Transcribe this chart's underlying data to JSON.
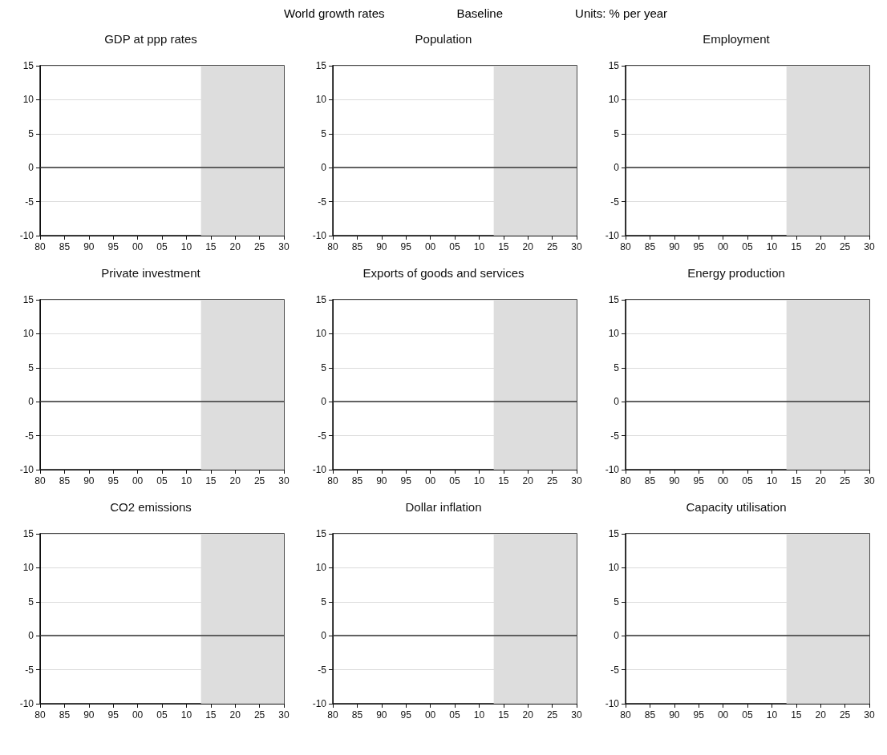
{
  "chart_data": [
    {
      "type": "line",
      "title": "GDP at ppp rates",
      "annotations": [
        "World growth rates",
        "Baseline",
        "Units: % per year"
      ],
      "xlim": [
        1980,
        2030
      ],
      "xticks": [
        {
          "value": 1980,
          "label": "80"
        },
        {
          "value": 1985,
          "label": "85"
        },
        {
          "value": 1990,
          "label": "90"
        },
        {
          "value": 1995,
          "label": "95"
        },
        {
          "value": 2000,
          "label": "00"
        },
        {
          "value": 2005,
          "label": "05"
        },
        {
          "value": 2010,
          "label": "10"
        },
        {
          "value": 2015,
          "label": "15"
        },
        {
          "value": 2020,
          "label": "20"
        },
        {
          "value": 2025,
          "label": "25"
        },
        {
          "value": 2030,
          "label": "30"
        }
      ],
      "ylim": [
        -10,
        15
      ],
      "yticks": [
        -10,
        -5,
        0,
        5,
        10,
        15
      ],
      "grid": "y",
      "bands": [
        {
          "axis": "x",
          "from": 2013,
          "to": 2030,
          "color": "#dddddd"
        }
      ],
      "ref_lines": [
        {
          "axis": "y",
          "value": 0,
          "color": "#333333"
        }
      ]
    },
    {
      "type": "line",
      "title": "Population",
      "xlim": [
        1980,
        2030
      ],
      "xticks": [
        {
          "value": 1980,
          "label": "80"
        },
        {
          "value": 1985,
          "label": "85"
        },
        {
          "value": 1990,
          "label": "90"
        },
        {
          "value": 1995,
          "label": "95"
        },
        {
          "value": 2000,
          "label": "00"
        },
        {
          "value": 2005,
          "label": "05"
        },
        {
          "value": 2010,
          "label": "10"
        },
        {
          "value": 2015,
          "label": "15"
        },
        {
          "value": 2020,
          "label": "20"
        },
        {
          "value": 2025,
          "label": "25"
        },
        {
          "value": 2030,
          "label": "30"
        }
      ],
      "ylim": [
        -10,
        15
      ],
      "yticks": [
        -10,
        -5,
        0,
        5,
        10,
        15
      ],
      "grid": "y",
      "bands": [
        {
          "axis": "x",
          "from": 2013,
          "to": 2030,
          "color": "#dddddd"
        }
      ],
      "ref_lines": [
        {
          "axis": "y",
          "value": 0,
          "color": "#333333"
        }
      ]
    },
    {
      "type": "line",
      "title": "Employment",
      "xlim": [
        1980,
        2030
      ],
      "xticks": [
        {
          "value": 1980,
          "label": "80"
        },
        {
          "value": 1985,
          "label": "85"
        },
        {
          "value": 1990,
          "label": "90"
        },
        {
          "value": 1995,
          "label": "95"
        },
        {
          "value": 2000,
          "label": "00"
        },
        {
          "value": 2005,
          "label": "05"
        },
        {
          "value": 2010,
          "label": "10"
        },
        {
          "value": 2015,
          "label": "15"
        },
        {
          "value": 2020,
          "label": "20"
        },
        {
          "value": 2025,
          "label": "25"
        },
        {
          "value": 2030,
          "label": "30"
        }
      ],
      "ylim": [
        -10,
        15
      ],
      "yticks": [
        -10,
        -5,
        0,
        5,
        10,
        15
      ],
      "grid": "y",
      "bands": [
        {
          "axis": "x",
          "from": 2013,
          "to": 2030,
          "color": "#dddddd"
        }
      ],
      "ref_lines": [
        {
          "axis": "y",
          "value": 0,
          "color": "#333333"
        }
      ]
    },
    {
      "type": "line",
      "title": "Private investment",
      "xlim": [
        1980,
        2030
      ],
      "xticks": [
        {
          "value": 1980,
          "label": "80"
        },
        {
          "value": 1985,
          "label": "85"
        },
        {
          "value": 1990,
          "label": "90"
        },
        {
          "value": 1995,
          "label": "95"
        },
        {
          "value": 2000,
          "label": "00"
        },
        {
          "value": 2005,
          "label": "05"
        },
        {
          "value": 2010,
          "label": "10"
        },
        {
          "value": 2015,
          "label": "15"
        },
        {
          "value": 2020,
          "label": "20"
        },
        {
          "value": 2025,
          "label": "25"
        },
        {
          "value": 2030,
          "label": "30"
        }
      ],
      "ylim": [
        -10,
        15
      ],
      "yticks": [
        -10,
        -5,
        0,
        5,
        10,
        15
      ],
      "grid": "y",
      "bands": [
        {
          "axis": "x",
          "from": 2013,
          "to": 2030,
          "color": "#dddddd"
        }
      ],
      "ref_lines": [
        {
          "axis": "y",
          "value": 0,
          "color": "#333333"
        }
      ]
    },
    {
      "type": "line",
      "title": "Exports of goods and services",
      "xlim": [
        1980,
        2030
      ],
      "xticks": [
        {
          "value": 1980,
          "label": "80"
        },
        {
          "value": 1985,
          "label": "85"
        },
        {
          "value": 1990,
          "label": "90"
        },
        {
          "value": 1995,
          "label": "95"
        },
        {
          "value": 2000,
          "label": "00"
        },
        {
          "value": 2005,
          "label": "05"
        },
        {
          "value": 2010,
          "label": "10"
        },
        {
          "value": 2015,
          "label": "15"
        },
        {
          "value": 2020,
          "label": "20"
        },
        {
          "value": 2025,
          "label": "25"
        },
        {
          "value": 2030,
          "label": "30"
        }
      ],
      "ylim": [
        -10,
        15
      ],
      "yticks": [
        -10,
        -5,
        0,
        5,
        10,
        15
      ],
      "grid": "y",
      "bands": [
        {
          "axis": "x",
          "from": 2013,
          "to": 2030,
          "color": "#dddddd"
        }
      ],
      "ref_lines": [
        {
          "axis": "y",
          "value": 0,
          "color": "#333333"
        }
      ]
    },
    {
      "type": "line",
      "title": "Energy production",
      "xlim": [
        1980,
        2030
      ],
      "xticks": [
        {
          "value": 1980,
          "label": "80"
        },
        {
          "value": 1985,
          "label": "85"
        },
        {
          "value": 1990,
          "label": "90"
        },
        {
          "value": 1995,
          "label": "95"
        },
        {
          "value": 2000,
          "label": "00"
        },
        {
          "value": 2005,
          "label": "05"
        },
        {
          "value": 2010,
          "label": "10"
        },
        {
          "value": 2015,
          "label": "15"
        },
        {
          "value": 2020,
          "label": "20"
        },
        {
          "value": 2025,
          "label": "25"
        },
        {
          "value": 2030,
          "label": "30"
        }
      ],
      "ylim": [
        -10,
        15
      ],
      "yticks": [
        -10,
        -5,
        0,
        5,
        10,
        15
      ],
      "grid": "y",
      "bands": [
        {
          "axis": "x",
          "from": 2013,
          "to": 2030,
          "color": "#dddddd"
        }
      ],
      "ref_lines": [
        {
          "axis": "y",
          "value": 0,
          "color": "#333333"
        }
      ]
    },
    {
      "type": "line",
      "title": "CO2 emissions",
      "xlim": [
        1980,
        2030
      ],
      "xticks": [
        {
          "value": 1980,
          "label": "80"
        },
        {
          "value": 1985,
          "label": "85"
        },
        {
          "value": 1990,
          "label": "90"
        },
        {
          "value": 1995,
          "label": "95"
        },
        {
          "value": 2000,
          "label": "00"
        },
        {
          "value": 2005,
          "label": "05"
        },
        {
          "value": 2010,
          "label": "10"
        },
        {
          "value": 2015,
          "label": "15"
        },
        {
          "value": 2020,
          "label": "20"
        },
        {
          "value": 2025,
          "label": "25"
        },
        {
          "value": 2030,
          "label": "30"
        }
      ],
      "ylim": [
        -10,
        15
      ],
      "yticks": [
        -10,
        -5,
        0,
        5,
        10,
        15
      ],
      "grid": "y",
      "bands": [
        {
          "axis": "x",
          "from": 2013,
          "to": 2030,
          "color": "#dddddd"
        }
      ],
      "ref_lines": [
        {
          "axis": "y",
          "value": 0,
          "color": "#333333"
        }
      ]
    },
    {
      "type": "line",
      "title": "Dollar inflation",
      "xlim": [
        1980,
        2030
      ],
      "xticks": [
        {
          "value": 1980,
          "label": "80"
        },
        {
          "value": 1985,
          "label": "85"
        },
        {
          "value": 1990,
          "label": "90"
        },
        {
          "value": 1995,
          "label": "95"
        },
        {
          "value": 2000,
          "label": "00"
        },
        {
          "value": 2005,
          "label": "05"
        },
        {
          "value": 2010,
          "label": "10"
        },
        {
          "value": 2015,
          "label": "15"
        },
        {
          "value": 2020,
          "label": "20"
        },
        {
          "value": 2025,
          "label": "25"
        },
        {
          "value": 2030,
          "label": "30"
        }
      ],
      "ylim": [
        -10,
        15
      ],
      "yticks": [
        -10,
        -5,
        0,
        5,
        10,
        15
      ],
      "grid": "y",
      "bands": [
        {
          "axis": "x",
          "from": 2013,
          "to": 2030,
          "color": "#dddddd"
        }
      ],
      "ref_lines": [
        {
          "axis": "y",
          "value": 0,
          "color": "#333333"
        }
      ]
    },
    {
      "type": "line",
      "title": "Capacity utilisation",
      "xlim": [
        1980,
        2030
      ],
      "xticks": [
        {
          "value": 1980,
          "label": "80"
        },
        {
          "value": 1985,
          "label": "85"
        },
        {
          "value": 1990,
          "label": "90"
        },
        {
          "value": 1995,
          "label": "95"
        },
        {
          "value": 2000,
          "label": "00"
        },
        {
          "value": 2005,
          "label": "05"
        },
        {
          "value": 2010,
          "label": "10"
        },
        {
          "value": 2015,
          "label": "15"
        },
        {
          "value": 2020,
          "label": "20"
        },
        {
          "value": 2025,
          "label": "25"
        },
        {
          "value": 2030,
          "label": "30"
        }
      ],
      "ylim": [
        -10,
        15
      ],
      "yticks": [
        -10,
        -5,
        0,
        5,
        10,
        15
      ],
      "grid": "y",
      "bands": [
        {
          "axis": "x",
          "from": 2013,
          "to": 2030,
          "color": "#dddddd"
        }
      ],
      "ref_lines": [
        {
          "axis": "y",
          "value": 0,
          "color": "#333333"
        }
      ]
    }
  ]
}
